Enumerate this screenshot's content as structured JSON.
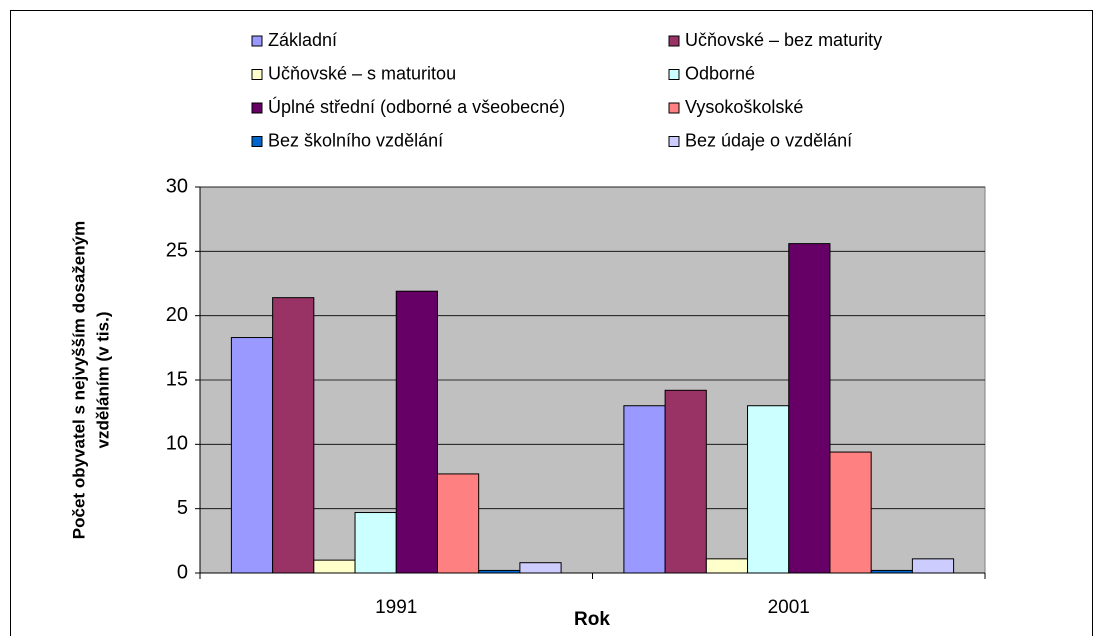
{
  "chart_data": {
    "type": "bar",
    "y_label": [
      "Počet obyvatel s nejvyšším dosaženým",
      "vzděláním (v tis.)"
    ],
    "x_label": "Rok",
    "categories": [
      "1991",
      "2001"
    ],
    "series": [
      {
        "name": "Základní",
        "color": "#9999ff",
        "values": [
          18.3,
          13.0
        ]
      },
      {
        "name": "Učňovské – bez maturity",
        "color": "#993366",
        "values": [
          21.4,
          14.2
        ]
      },
      {
        "name": "Učňovské – s maturitou",
        "color": "#ffffcc",
        "values": [
          1.0,
          1.1
        ]
      },
      {
        "name": "Odborné",
        "color": "#ccffff",
        "values": [
          4.7,
          13.0
        ]
      },
      {
        "name": "Úplné střední (odborné a všeobecné)",
        "color": "#660066",
        "values": [
          21.9,
          25.6
        ]
      },
      {
        "name": "Vysokoškolské",
        "color": "#ff8080",
        "values": [
          7.7,
          9.4
        ]
      },
      {
        "name": "Bez školního vzdělání",
        "color": "#0066cc",
        "values": [
          0.2,
          0.2
        ]
      },
      {
        "name": "Bez údaje o vzdělání",
        "color": "#ccccff",
        "values": [
          0.8,
          1.1
        ]
      }
    ],
    "ylim": [
      0,
      30
    ],
    "yticks": [
      0,
      5,
      10,
      15,
      20,
      25,
      30
    ],
    "grid": true,
    "plot_background": "#c0c0c0",
    "legend": "top"
  }
}
